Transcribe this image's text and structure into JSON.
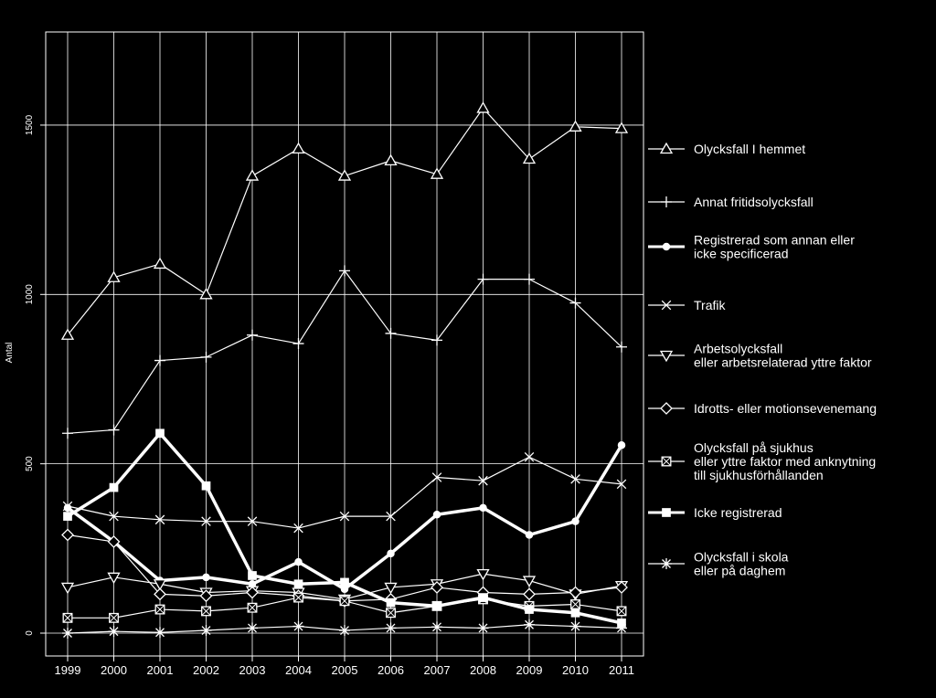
{
  "chart_data": {
    "type": "line",
    "title": "",
    "xlabel": "",
    "ylabel": "Antal",
    "ylim": [
      0,
      1770
    ],
    "yticks": [
      0,
      500,
      1000,
      1500
    ],
    "grid": true,
    "legend_position": "right",
    "background_color": "#000000",
    "foreground_color": "#ffffff",
    "categories": [
      "1999",
      "2000",
      "2001",
      "2002",
      "2003",
      "2004",
      "2005",
      "2006",
      "2007",
      "2008",
      "2009",
      "2010",
      "2011"
    ],
    "series": [
      {
        "name": "Olycksfall I hemmet",
        "marker": "triangle-up",
        "bold": false,
        "values": [
          880,
          1050,
          1090,
          1000,
          1350,
          1430,
          1350,
          1395,
          1355,
          1550,
          1400,
          1495,
          1490
        ]
      },
      {
        "name": "Annat fritidsolycksfall",
        "marker": "plus",
        "bold": false,
        "values": [
          590,
          600,
          805,
          815,
          880,
          855,
          1070,
          885,
          865,
          1045,
          1045,
          975,
          845
        ]
      },
      {
        "name": "Registrerad som annan eller icke specificerad",
        "marker": "filled-circle",
        "bold": true,
        "values": [
          370,
          270,
          155,
          165,
          145,
          210,
          130,
          235,
          350,
          370,
          290,
          330,
          555
        ]
      },
      {
        "name": "Trafik",
        "marker": "x",
        "bold": false,
        "values": [
          375,
          345,
          335,
          330,
          330,
          310,
          345,
          345,
          460,
          450,
          520,
          455,
          440
        ]
      },
      {
        "name": "Arbetsolycksfall eller arbetsrelaterad yttre faktor",
        "marker": "triangle-down",
        "bold": false,
        "values": [
          135,
          165,
          145,
          120,
          125,
          120,
          100,
          135,
          145,
          175,
          155,
          115,
          140
        ]
      },
      {
        "name": "Idrotts- eller motionsevenemang",
        "marker": "diamond",
        "bold": false,
        "values": [
          290,
          270,
          115,
          110,
          120,
          110,
          95,
          100,
          135,
          120,
          115,
          120,
          135
        ]
      },
      {
        "name": "Olycksfall på sjukhus eller yttre faktor med anknytning till sjukhusförhållanden",
        "marker": "square-x",
        "bold": false,
        "values": [
          45,
          45,
          70,
          65,
          75,
          105,
          95,
          60,
          80,
          100,
          80,
          85,
          65
        ]
      },
      {
        "name": "Icke registrerad",
        "marker": "filled-square",
        "bold": true,
        "values": [
          345,
          430,
          590,
          435,
          170,
          145,
          150,
          90,
          80,
          105,
          70,
          60,
          30
        ]
      },
      {
        "name": "Olycksfall i skola eller på daghem",
        "marker": "asterisk",
        "bold": false,
        "values": [
          0,
          5,
          2,
          8,
          15,
          20,
          8,
          15,
          18,
          15,
          25,
          20,
          15
        ]
      }
    ],
    "legend": [
      [
        "Olycksfall I hemmet"
      ],
      [
        "Annat fritidsolycksfall"
      ],
      [
        "Registrerad som annan eller",
        "icke specificerad"
      ],
      [
        "Trafik"
      ],
      [
        "Arbetsolycksfall",
        "eller arbetsrelaterad yttre faktor"
      ],
      [
        "Idrotts- eller motionsevenemang"
      ],
      [
        "Olycksfall på sjukhus",
        "eller yttre faktor med anknytning",
        "till sjukhusförhållanden"
      ],
      [
        "Icke registrerad"
      ],
      [
        "Olycksfall i skola",
        "eller på daghem"
      ]
    ]
  }
}
